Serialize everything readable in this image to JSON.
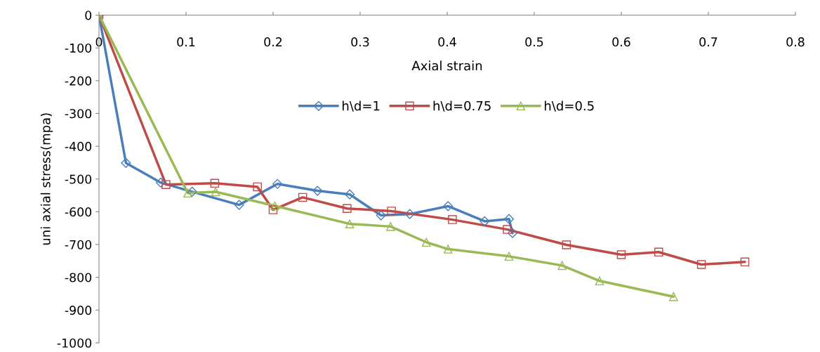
{
  "chart_data": {
    "type": "line",
    "xlabel": "Axial strain",
    "ylabel": "uni axial stress(mpa)",
    "xlim": [
      0,
      0.8
    ],
    "xticks": [
      0,
      0.1,
      0.2,
      0.3,
      0.4,
      0.5,
      0.6,
      0.7,
      0.8
    ],
    "ylim": [
      -1000,
      0
    ],
    "yticks": [
      -1000,
      -900,
      -800,
      -700,
      -600,
      -500,
      -400,
      -300,
      -200,
      -100,
      0
    ],
    "grid": false,
    "legend": "center",
    "line_style": "solid",
    "series": [
      {
        "name": "h\\d=1",
        "color": "#4a7ebb",
        "marker": "diamond",
        "x": [
          0,
          0.031,
          0.071,
          0.107,
          0.161,
          0.205,
          0.251,
          0.288,
          0.324,
          0.357,
          0.401,
          0.443,
          0.471,
          0.475
        ],
        "values": [
          0,
          -451,
          -511,
          -539,
          -579,
          -515,
          -536,
          -547,
          -611,
          -607,
          -583,
          -629,
          -622,
          -665
        ]
      },
      {
        "name": "h\\d=0.75",
        "color": "#be4b48",
        "marker": "square",
        "x": [
          0,
          0.077,
          0.133,
          0.182,
          0.2,
          0.234,
          0.285,
          0.336,
          0.406,
          0.469,
          0.537,
          0.6,
          0.643,
          0.692,
          0.742
        ],
        "values": [
          0,
          -517,
          -513,
          -524,
          -594,
          -556,
          -590,
          -598,
          -624,
          -654,
          -701,
          -731,
          -723,
          -761,
          -753
        ]
      },
      {
        "name": "h\\d=0.5",
        "color": "#98b954",
        "marker": "triangle",
        "x": [
          0,
          0.102,
          0.134,
          0.202,
          0.288,
          0.335,
          0.376,
          0.401,
          0.471,
          0.532,
          0.575,
          0.66
        ],
        "values": [
          0,
          -543,
          -539,
          -582,
          -637,
          -645,
          -693,
          -714,
          -736,
          -764,
          -811,
          -859
        ]
      }
    ]
  }
}
